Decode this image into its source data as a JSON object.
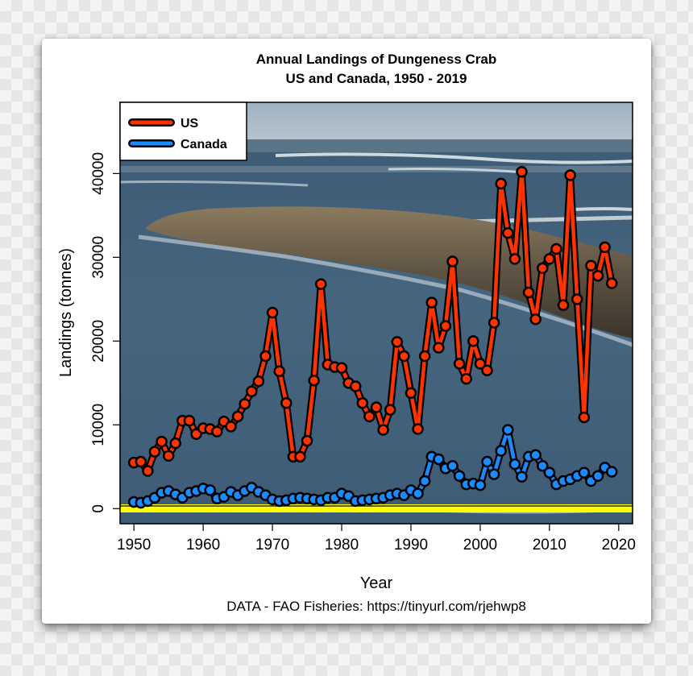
{
  "chart_data": {
    "type": "line",
    "title": "Annual Landings of Dungeness Crab",
    "subtitle": "US and Canada, 1950 - 2019",
    "xlabel": "Year",
    "ylabel": "Landings (tonnes)",
    "source": "DATA - FAO Fisheries: https://tinyurl.com/rjehwp8",
    "xlim": [
      1948,
      2022
    ],
    "ylim": [
      -1800,
      48500
    ],
    "x_ticks": [
      1950,
      1960,
      1970,
      1980,
      1990,
      2000,
      2010,
      2020
    ],
    "y_ticks": [
      0,
      10000,
      20000,
      30000,
      40000
    ],
    "grid": false,
    "legend_position": "top-left",
    "background": "photo of ocean jetty",
    "x": [
      1950,
      1951,
      1952,
      1953,
      1954,
      1955,
      1956,
      1957,
      1958,
      1959,
      1960,
      1961,
      1962,
      1963,
      1964,
      1965,
      1966,
      1967,
      1968,
      1969,
      1970,
      1971,
      1972,
      1973,
      1974,
      1975,
      1976,
      1977,
      1978,
      1979,
      1980,
      1981,
      1982,
      1983,
      1984,
      1985,
      1986,
      1987,
      1988,
      1989,
      1990,
      1991,
      1992,
      1993,
      1994,
      1995,
      1996,
      1997,
      1998,
      1999,
      2000,
      2001,
      2002,
      2003,
      2004,
      2005,
      2006,
      2007,
      2008,
      2009,
      2010,
      2011,
      2012,
      2013,
      2014,
      2015,
      2016,
      2017,
      2018,
      2019
    ],
    "series": [
      {
        "name": "US",
        "color": "#ff3300",
        "values": [
          5500,
          5600,
          4500,
          6800,
          8000,
          6300,
          7800,
          10500,
          10500,
          8900,
          9600,
          9500,
          9200,
          10400,
          9800,
          11000,
          12500,
          14000,
          15200,
          18200,
          23400,
          16400,
          12600,
          6200,
          6200,
          8100,
          15300,
          26800,
          17200,
          16900,
          16800,
          15000,
          14600,
          12600,
          11000,
          12100,
          9400,
          11800,
          19900,
          18200,
          13800,
          9500,
          18200,
          24600,
          19200,
          21800,
          29500,
          17300,
          15500,
          20000,
          17300,
          16500,
          22200,
          38800,
          32900,
          29800,
          40200,
          25800,
          22600,
          28700,
          29800,
          31000,
          24300,
          39800,
          25000,
          10900,
          29000,
          27800,
          31200,
          26900
        ]
      },
      {
        "name": "Canada",
        "color": "#1a8cff",
        "values": [
          800,
          700,
          900,
          1300,
          1900,
          2100,
          1700,
          1300,
          1900,
          2100,
          2400,
          2200,
          1200,
          1400,
          2000,
          1600,
          2100,
          2500,
          2000,
          1600,
          1100,
          900,
          1000,
          1200,
          1300,
          1200,
          1100,
          1000,
          1300,
          1300,
          1800,
          1500,
          900,
          1000,
          1100,
          1200,
          1300,
          1600,
          1800,
          1600,
          2200,
          1800,
          3300,
          6200,
          5900,
          4800,
          5100,
          3900,
          2900,
          3000,
          2800,
          5600,
          4100,
          6900,
          9400,
          5300,
          3800,
          6200,
          6400,
          5100,
          4300,
          2900,
          3300,
          3500,
          3900,
          4300,
          3300,
          3900,
          4900,
          4400
        ]
      }
    ]
  }
}
